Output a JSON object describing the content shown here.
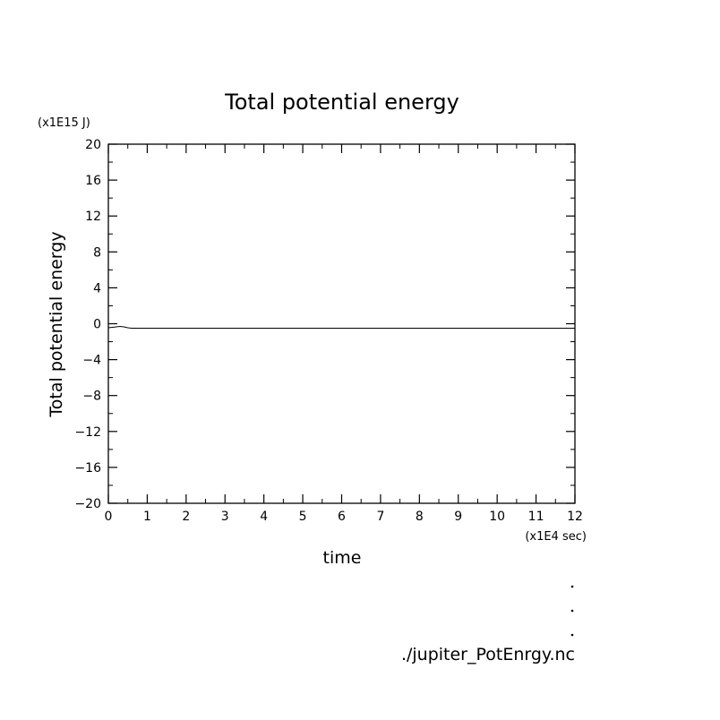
{
  "chart_data": {
    "type": "line",
    "title": "Total potential energy",
    "xlabel": "time",
    "ylabel": "Total potential energy",
    "x_unit_label": "(x1E4 sec)",
    "y_unit_label": "(x1E15 J)",
    "xlim": [
      0,
      12
    ],
    "ylim": [
      -20,
      20
    ],
    "x_ticks": [
      0,
      1,
      2,
      3,
      4,
      5,
      6,
      7,
      8,
      9,
      10,
      11,
      12
    ],
    "y_ticks": [
      20,
      16,
      12,
      8,
      4,
      0,
      -4,
      -8,
      -12,
      -16,
      -20
    ],
    "x_tick_labels": [
      "0",
      "1",
      "2",
      "3",
      "4",
      "5",
      "6",
      "7",
      "8",
      "9",
      "10",
      "11",
      "12"
    ],
    "y_tick_labels": [
      "20",
      "16",
      "12",
      "8",
      "4",
      "0",
      "−4",
      "−8",
      "−12",
      "−16",
      "−20"
    ],
    "grid": false,
    "series": [
      {
        "x": [
          0,
          0.1,
          0.2,
          0.3,
          0.4,
          0.5,
          0.6,
          1,
          2,
          4,
          6,
          8,
          10,
          12
        ],
        "y": [
          -0.45,
          -0.4,
          -0.35,
          -0.3,
          -0.35,
          -0.45,
          -0.5,
          -0.5,
          -0.5,
          -0.5,
          -0.5,
          -0.5,
          -0.5,
          -0.5
        ]
      }
    ]
  },
  "footer": {
    "file_label": "./jupiter_PotEnrgy.nc"
  }
}
